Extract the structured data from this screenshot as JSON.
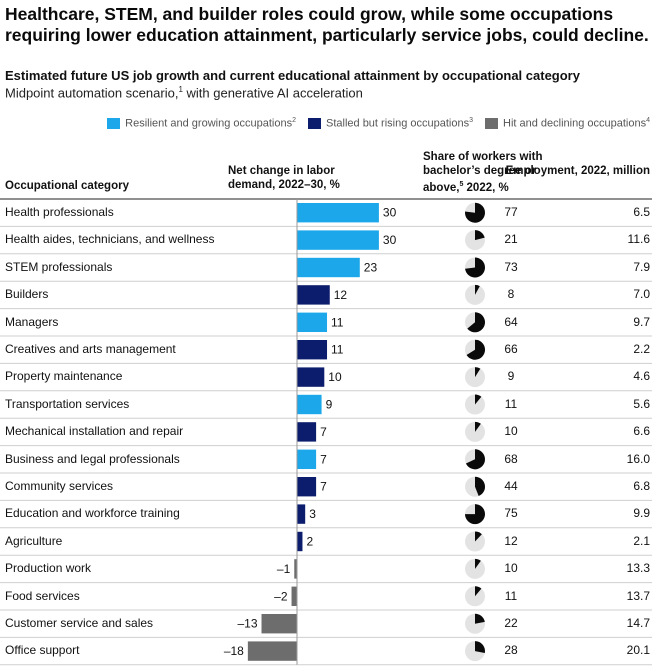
{
  "headline": "Healthcare, STEM, and builder roles could grow, while some occupations requiring lower education attainment, particularly service jobs, could decline.",
  "subtitle": "Estimated future US job growth and current educational attainment by occupational category",
  "subnote": {
    "text_before": "Midpoint automation scenario,",
    "sup": "1",
    "text_after": " with generative AI acceleration"
  },
  "legend": [
    {
      "label": "Resilient and growing occupations",
      "sup": "2",
      "color": "#1ba7ea"
    },
    {
      "label": "Stalled but rising occupations",
      "sup": "3",
      "color": "#0c1d6e"
    },
    {
      "label": "Hit and declining occupations",
      "sup": "4",
      "color": "#6d6d6d"
    }
  ],
  "headers": {
    "category": "Occupational category",
    "net_change": "Net change in labor demand, 2022–30, %",
    "share_before": "Share of workers with bachelor’s degree or above,",
    "share_sup": "5",
    "share_after": " 2022, %",
    "employment": "Employment, 2022, million"
  },
  "colors": {
    "pie_fill": "#0a0a0a",
    "pie_bg": "#e3e3e3",
    "divider": "#cfcfcf"
  },
  "chart_data": {
    "type": "bar",
    "orientation": "horizontal",
    "categories": [
      "Health professionals",
      "Health aides, technicians, and wellness",
      "STEM professionals",
      "Builders",
      "Managers",
      "Creatives and arts management",
      "Property maintenance",
      "Transportation services",
      "Mechanical installation and repair",
      "Business and legal professionals",
      "Community services",
      "Education and workforce training",
      "Agriculture",
      "Production work",
      "Food services",
      "Customer service and sales",
      "Office support"
    ],
    "net_change": [
      30,
      30,
      23,
      12,
      11,
      11,
      10,
      9,
      7,
      7,
      7,
      3,
      2,
      -1,
      -2,
      -13,
      -18
    ],
    "net_change_labels": [
      "30",
      "30",
      "23",
      "12",
      "11",
      "11",
      "10",
      "9",
      "7",
      "7",
      "7",
      "3",
      "2",
      "–1",
      "–2",
      "–13",
      "–18"
    ],
    "group": [
      "resilient",
      "resilient",
      "resilient",
      "stalled",
      "resilient",
      "stalled",
      "stalled",
      "resilient",
      "stalled",
      "resilient",
      "stalled",
      "stalled",
      "stalled",
      "hit",
      "hit",
      "hit",
      "hit"
    ],
    "bachelor_share": [
      77,
      21,
      73,
      8,
      64,
      66,
      9,
      11,
      10,
      68,
      44,
      75,
      12,
      10,
      11,
      22,
      28
    ],
    "employment_labels": [
      "6.5",
      "11.6",
      "7.9",
      "7.0",
      "9.7",
      "2.2",
      "4.6",
      "5.6",
      "6.6",
      "16.0",
      "6.8",
      "9.9",
      "2.1",
      "13.3",
      "13.7",
      "14.7",
      "20.1"
    ]
  }
}
